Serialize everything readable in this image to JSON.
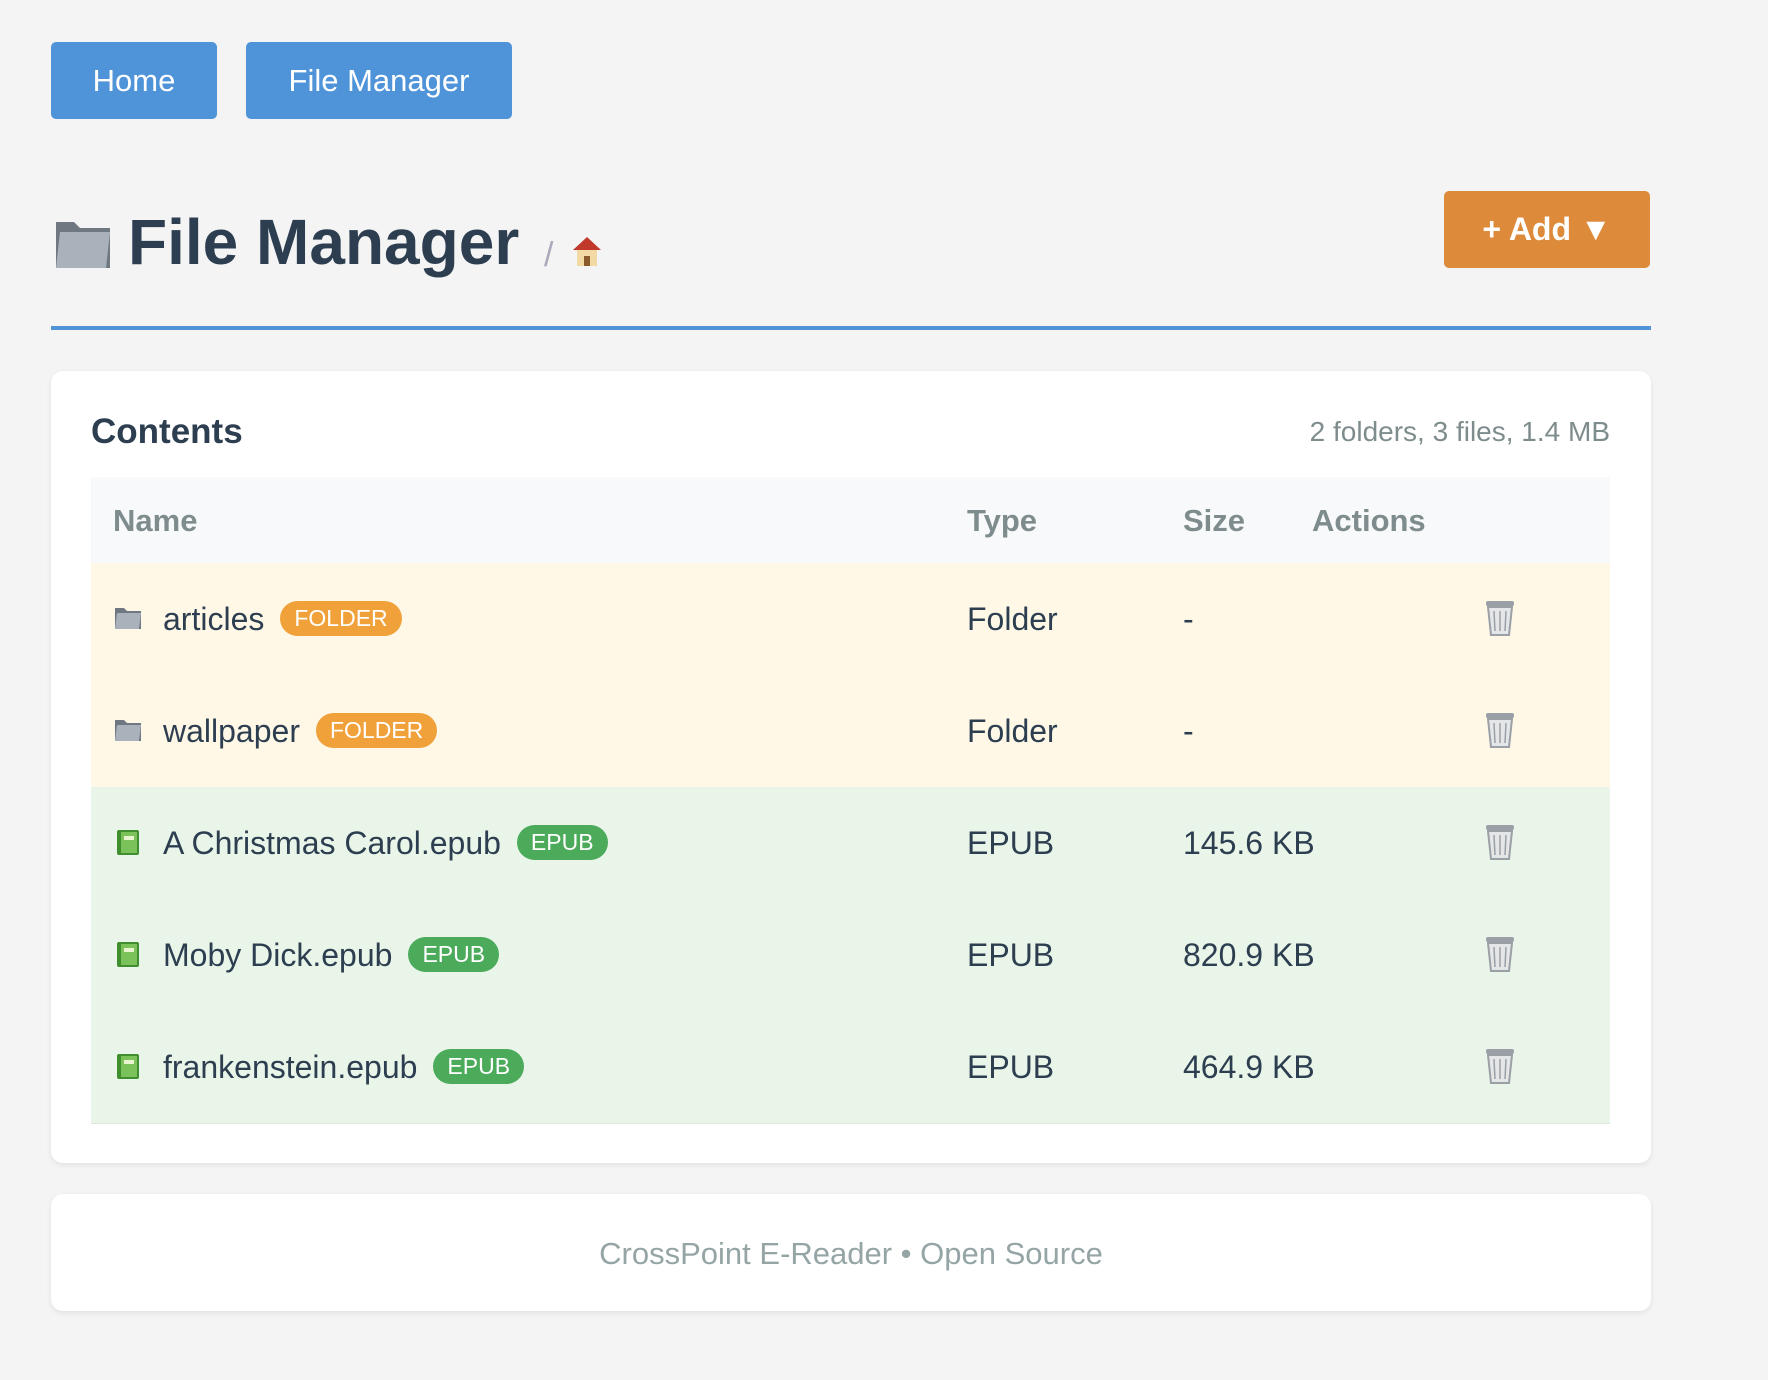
{
  "nav": [
    "Home",
    "File Manager"
  ],
  "header": {
    "title": "File Manager",
    "breadcrumb_separator": "/",
    "add_button": "+ Add ▼"
  },
  "contents": {
    "title": "Contents",
    "summary": "2 folders, 3 files, 1.4 MB",
    "columns": [
      "Name",
      "Type",
      "Size",
      "Actions"
    ],
    "rows": [
      {
        "name": "articles",
        "badge": "FOLDER",
        "type": "Folder",
        "size": "-"
      },
      {
        "name": "wallpaper",
        "badge": "FOLDER",
        "type": "Folder",
        "size": "-"
      },
      {
        "name": "A Christmas Carol.epub",
        "badge": "EPUB",
        "type": "EPUB",
        "size": "145.6 KB"
      },
      {
        "name": "Moby Dick.epub",
        "badge": "EPUB",
        "type": "EPUB",
        "size": "820.9 KB"
      },
      {
        "name": "frankenstein.epub",
        "badge": "EPUB",
        "type": "EPUB",
        "size": "464.9 KB"
      }
    ]
  },
  "footer": "CrossPoint E-Reader • Open Source"
}
